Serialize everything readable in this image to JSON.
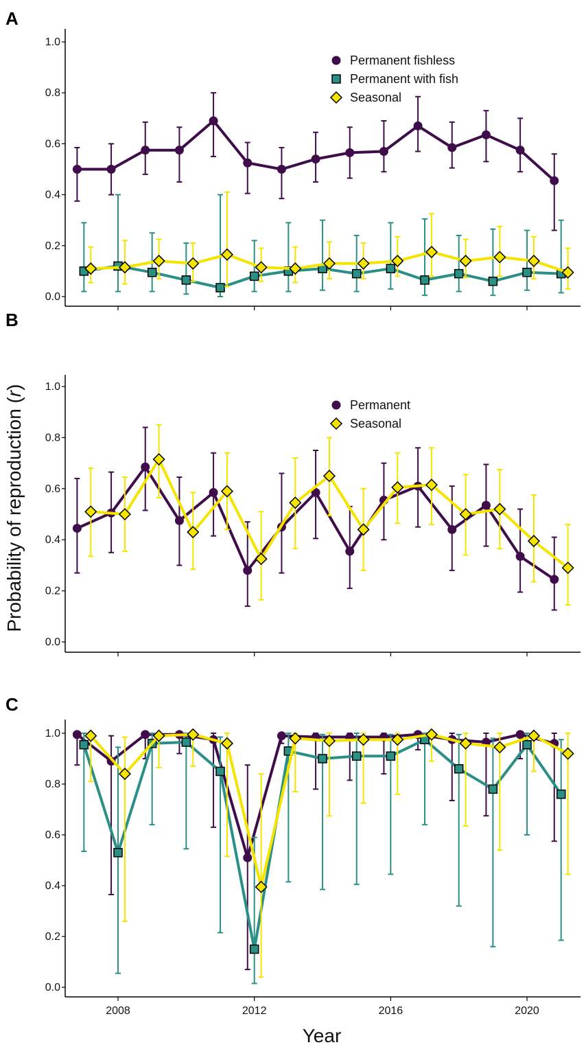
{
  "figure": {
    "ylabel_main": "Probability of reproduction (",
    "ylabel_var": "r",
    "ylabel_close": ")",
    "xlabel": "Year",
    "x_ticks": [
      2008,
      2012,
      2016,
      2020
    ],
    "y_ticks": [
      "0.0",
      "0.2",
      "0.4",
      "0.6",
      "0.8",
      "1.0"
    ]
  },
  "colors": {
    "permanent": "#3f0d4a",
    "permanent_fish": "#2a9086",
    "seasonal": "#f5e400",
    "seasonal_stroke": "#000000"
  },
  "chart_data": [
    {
      "panel": "A",
      "type": "line",
      "xlabel": "Year",
      "ylabel": "Probability of reproduction (r)",
      "ylim": [
        0,
        1
      ],
      "xlim": [
        2006.5,
        2021.6
      ],
      "legend": "top-right",
      "series": [
        {
          "name": "Permanent fishless",
          "marker": "circle",
          "color": "permanent",
          "offset": -0.2,
          "x": [
            2007,
            2008,
            2009,
            2010,
            2011,
            2012,
            2013,
            2014,
            2015,
            2016,
            2017,
            2018,
            2019,
            2020,
            2021
          ],
          "values": [
            0.5,
            0.5,
            0.575,
            0.575,
            0.69,
            0.525,
            0.5,
            0.54,
            0.565,
            0.57,
            0.67,
            0.585,
            0.635,
            0.575,
            0.455
          ],
          "lower": [
            0.375,
            0.4,
            0.48,
            0.45,
            0.55,
            0.405,
            0.385,
            0.45,
            0.465,
            0.49,
            0.57,
            0.505,
            0.53,
            0.49,
            0.26
          ],
          "upper": [
            0.585,
            0.6,
            0.685,
            0.665,
            0.8,
            0.605,
            0.585,
            0.645,
            0.665,
            0.69,
            0.785,
            0.685,
            0.73,
            0.7,
            0.56
          ]
        },
        {
          "name": "Permanent with fish",
          "marker": "square",
          "color": "permanent_fish",
          "offset": 0,
          "x": [
            2007,
            2008,
            2009,
            2010,
            2011,
            2012,
            2013,
            2014,
            2015,
            2016,
            2017,
            2018,
            2019,
            2020,
            2021
          ],
          "values": [
            0.1,
            0.12,
            0.095,
            0.065,
            0.035,
            0.08,
            0.1,
            0.11,
            0.09,
            0.11,
            0.065,
            0.09,
            0.06,
            0.095,
            0.09
          ],
          "lower": [
            0.02,
            0.02,
            0.02,
            0.01,
            0.0,
            0.02,
            0.02,
            0.025,
            0.02,
            0.03,
            0.005,
            0.02,
            0.005,
            0.025,
            0.015
          ],
          "upper": [
            0.29,
            0.4,
            0.25,
            0.21,
            0.4,
            0.22,
            0.29,
            0.3,
            0.24,
            0.29,
            0.305,
            0.24,
            0.265,
            0.26,
            0.3
          ]
        },
        {
          "name": "Seasonal",
          "marker": "diamond",
          "color": "seasonal",
          "offset": 0.2,
          "x": [
            2007,
            2008,
            2009,
            2010,
            2011,
            2012,
            2013,
            2014,
            2015,
            2016,
            2017,
            2018,
            2019,
            2020,
            2021
          ],
          "values": [
            0.11,
            0.115,
            0.14,
            0.13,
            0.165,
            0.115,
            0.11,
            0.13,
            0.13,
            0.14,
            0.175,
            0.14,
            0.155,
            0.14,
            0.095
          ],
          "lower": [
            0.055,
            0.05,
            0.07,
            0.06,
            0.04,
            0.06,
            0.055,
            0.07,
            0.07,
            0.08,
            0.08,
            0.075,
            0.08,
            0.07,
            0.03
          ],
          "upper": [
            0.195,
            0.22,
            0.225,
            0.21,
            0.41,
            0.19,
            0.195,
            0.215,
            0.21,
            0.235,
            0.325,
            0.225,
            0.275,
            0.235,
            0.19
          ]
        }
      ]
    },
    {
      "panel": "B",
      "type": "line",
      "xlabel": "Year",
      "ylabel": "Probability of reproduction (r)",
      "ylim": [
        0,
        1
      ],
      "xlim": [
        2006.5,
        2021.6
      ],
      "legend": "top-right",
      "series": [
        {
          "name": "Permanent",
          "marker": "circle",
          "color": "permanent",
          "offset": -0.2,
          "x": [
            2007,
            2008,
            2009,
            2010,
            2011,
            2012,
            2013,
            2014,
            2015,
            2016,
            2017,
            2018,
            2019,
            2020,
            2021
          ],
          "values": [
            0.445,
            0.505,
            0.685,
            0.475,
            0.585,
            0.28,
            0.45,
            0.585,
            0.355,
            0.555,
            0.61,
            0.44,
            0.535,
            0.335,
            0.245
          ],
          "lower": [
            0.27,
            0.35,
            0.515,
            0.3,
            0.415,
            0.14,
            0.27,
            0.405,
            0.21,
            0.4,
            0.45,
            0.28,
            0.375,
            0.195,
            0.125
          ],
          "upper": [
            0.64,
            0.665,
            0.84,
            0.645,
            0.74,
            0.47,
            0.66,
            0.75,
            0.53,
            0.7,
            0.76,
            0.61,
            0.695,
            0.52,
            0.41
          ]
        },
        {
          "name": "Seasonal",
          "marker": "diamond",
          "color": "seasonal",
          "offset": 0.2,
          "x": [
            2007,
            2008,
            2009,
            2010,
            2011,
            2012,
            2013,
            2014,
            2015,
            2016,
            2017,
            2018,
            2019,
            2020,
            2021
          ],
          "values": [
            0.51,
            0.5,
            0.715,
            0.43,
            0.59,
            0.325,
            0.545,
            0.65,
            0.44,
            0.605,
            0.615,
            0.5,
            0.52,
            0.395,
            0.29
          ],
          "lower": [
            0.335,
            0.355,
            0.565,
            0.285,
            0.44,
            0.165,
            0.365,
            0.495,
            0.28,
            0.465,
            0.46,
            0.34,
            0.365,
            0.235,
            0.145
          ],
          "upper": [
            0.68,
            0.645,
            0.85,
            0.585,
            0.74,
            0.51,
            0.72,
            0.8,
            0.6,
            0.74,
            0.76,
            0.655,
            0.675,
            0.575,
            0.46
          ]
        }
      ]
    },
    {
      "panel": "C",
      "type": "line",
      "xlabel": "Year",
      "ylabel": "Probability of reproduction (r)",
      "ylim": [
        0,
        1
      ],
      "xlim": [
        2006.5,
        2021.6
      ],
      "legend": "none",
      "series": [
        {
          "name": "Permanent fishless",
          "marker": "circle",
          "color": "permanent",
          "offset": -0.2,
          "x": [
            2007,
            2008,
            2009,
            2010,
            2011,
            2012,
            2013,
            2014,
            2015,
            2016,
            2017,
            2018,
            2019,
            2020,
            2021
          ],
          "values": [
            0.995,
            0.89,
            0.995,
            0.995,
            0.975,
            0.51,
            0.99,
            0.985,
            0.985,
            0.985,
            0.995,
            0.975,
            0.965,
            0.995,
            0.96
          ],
          "lower": [
            0.875,
            0.365,
            0.9,
            0.92,
            0.63,
            0.07,
            0.96,
            0.78,
            0.815,
            0.84,
            0.935,
            0.735,
            0.675,
            0.9,
            0.575
          ],
          "upper": [
            1.0,
            0.99,
            1.0,
            1.0,
            1.0,
            0.875,
            1.0,
            1.0,
            1.0,
            1.0,
            1.0,
            1.0,
            1.0,
            1.0,
            1.0
          ]
        },
        {
          "name": "Permanent with fish",
          "marker": "square",
          "color": "permanent_fish",
          "offset": 0,
          "x": [
            2007,
            2008,
            2009,
            2010,
            2011,
            2012,
            2013,
            2014,
            2015,
            2016,
            2017,
            2018,
            2019,
            2020,
            2021
          ],
          "values": [
            0.955,
            0.53,
            0.96,
            0.965,
            0.85,
            0.15,
            0.93,
            0.9,
            0.91,
            0.91,
            0.975,
            0.86,
            0.78,
            0.955,
            0.76
          ],
          "lower": [
            0.535,
            0.055,
            0.64,
            0.545,
            0.215,
            0.015,
            0.415,
            0.385,
            0.405,
            0.445,
            0.64,
            0.32,
            0.16,
            0.6,
            0.185
          ],
          "upper": [
            1.0,
            0.945,
            1.0,
            1.0,
            0.985,
            0.59,
            1.0,
            0.995,
            1.0,
            0.995,
            1.0,
            0.995,
            0.98,
            1.0,
            0.975
          ]
        },
        {
          "name": "Seasonal",
          "marker": "diamond",
          "color": "seasonal",
          "offset": 0.2,
          "x": [
            2007,
            2008,
            2009,
            2010,
            2011,
            2012,
            2013,
            2014,
            2015,
            2016,
            2017,
            2018,
            2019,
            2020,
            2021
          ],
          "values": [
            0.99,
            0.84,
            0.99,
            0.995,
            0.96,
            0.395,
            0.98,
            0.97,
            0.975,
            0.975,
            0.995,
            0.96,
            0.945,
            0.99,
            0.92
          ],
          "lower": [
            0.81,
            0.26,
            0.865,
            0.87,
            0.515,
            0.04,
            0.77,
            0.675,
            0.725,
            0.76,
            0.89,
            0.635,
            0.54,
            0.85,
            0.445
          ],
          "upper": [
            1.0,
            0.985,
            1.0,
            1.0,
            1.0,
            0.84,
            1.0,
            1.0,
            1.0,
            1.0,
            1.0,
            1.0,
            1.0,
            1.0,
            1.0
          ]
        }
      ]
    }
  ]
}
